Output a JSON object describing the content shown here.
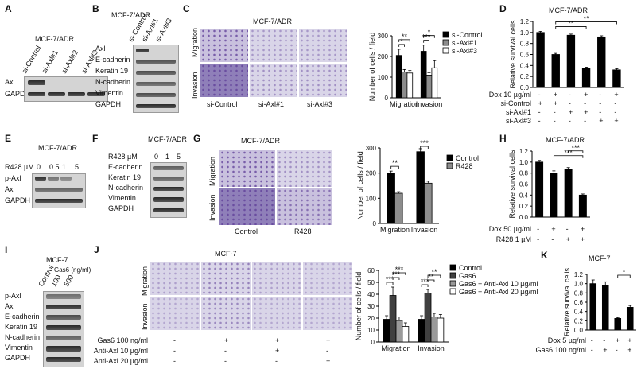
{
  "panels": {
    "A": {
      "letter": "A",
      "title": "MCF-7/ADR",
      "lanes": [
        "si-Control",
        "si-Axl#1",
        "si-Axl#2",
        "si-Axl#3"
      ],
      "rows": [
        "Axl",
        "GAPDH"
      ]
    },
    "B": {
      "letter": "B",
      "title": "MCF-7/ADR",
      "lanes": [
        "si-Control",
        "si-Axl#1",
        "si-Axl#3"
      ],
      "rows": [
        "Axl",
        "E-cadherin",
        "Keratin 19",
        "N-cadherin",
        "Vimentin",
        "GAPDH"
      ]
    },
    "C": {
      "letter": "C",
      "title": "MCF-7/ADR",
      "rows": [
        "Migration",
        "Invasion"
      ],
      "cols": [
        "si-Control",
        "si-Axl#1",
        "si-Axl#3"
      ]
    },
    "D": {
      "letter": "D",
      "title": "MCF-7/ADR",
      "treat_rows": [
        "Dox  10 µg/ml",
        "si-Control",
        "si-Axl#1",
        "si-Axl#3"
      ],
      "treat_signs": [
        [
          "-",
          "+",
          "-",
          "+",
          "-",
          "+"
        ],
        [
          "+",
          "+",
          "-",
          "-",
          "-",
          "-"
        ],
        [
          "-",
          "-",
          "+",
          "+",
          "-",
          "-"
        ],
        [
          "-",
          "-",
          "-",
          "-",
          "+",
          "+"
        ]
      ]
    },
    "E": {
      "letter": "E",
      "title": "MCF-7/ADR",
      "dose_label": "R428 µM",
      "doses": [
        "0",
        "0.5",
        "1",
        "5"
      ],
      "rows": [
        "p-Axl",
        "Axl",
        "GAPDH"
      ]
    },
    "F": {
      "letter": "F",
      "title": "MCF-7/ADR",
      "dose_label": "R428  µM",
      "doses": [
        "0",
        "1",
        "5"
      ],
      "rows": [
        "E-cadherin",
        "Keratin 19",
        "N-cadherin",
        "Vimentin",
        "GAPDH"
      ]
    },
    "G": {
      "letter": "G",
      "title": "MCF-7/ADR",
      "rows": [
        "Migration",
        "Invasion"
      ],
      "cols": [
        "Control",
        "R428"
      ]
    },
    "H": {
      "letter": "H",
      "title": "MCF-7/ADR",
      "treat_rows": [
        "Dox  50 µg/ml",
        "R428 1 µM"
      ],
      "treat_signs": [
        [
          "-",
          "+",
          "-",
          "+"
        ],
        [
          "-",
          "-",
          "+",
          "+"
        ]
      ]
    },
    "I": {
      "letter": "I",
      "title": "MCF-7",
      "dose_label": "Gas6 (ng/ml)",
      "lanes": [
        "Control",
        "100",
        "500"
      ],
      "rows": [
        "p-Axl",
        "Axl",
        "E-cadherin",
        "Keratin 19",
        "N-cadherin",
        "Vimentin",
        "GAPDH"
      ]
    },
    "J": {
      "letter": "J",
      "title": "MCF-7",
      "rows": [
        "Migration",
        "Invasion"
      ],
      "treat_rows": [
        "Gas6 100 ng/ml",
        "Anti-Axl 10 µg/ml",
        "Anti-Axl 20 µg/ml"
      ],
      "treat_signs": [
        [
          "-",
          "+",
          "+",
          "+"
        ],
        [
          "-",
          "-",
          "+",
          "-"
        ],
        [
          "-",
          "-",
          "-",
          "+"
        ]
      ]
    },
    "K": {
      "letter": "K",
      "title": "MCF-7",
      "treat_rows": [
        "Dox  5 µg/ml",
        "Gas6 100 ng/ml"
      ],
      "treat_signs": [
        [
          "-",
          "-",
          "+",
          "+"
        ],
        [
          "-",
          "+",
          "-",
          "+"
        ]
      ]
    }
  },
  "chart_data": [
    {
      "panel": "C",
      "type": "bar",
      "categories": [
        "Migration",
        "Invasion"
      ],
      "ylabel": "Number of cells / field",
      "ylim": [
        0,
        300
      ],
      "yticks": [
        0,
        100,
        200,
        300
      ],
      "series": [
        {
          "name": "si-Control",
          "color": "#000000",
          "values": [
            205,
            225
          ]
        },
        {
          "name": "si-Axl#1",
          "color": "#8c8c8c",
          "values": [
            125,
            110
          ]
        },
        {
          "name": "si-Axl#3",
          "color": "#ffffff",
          "values": [
            120,
            145
          ]
        }
      ],
      "errors": [
        [
          30,
          30
        ],
        [
          12,
          12
        ],
        [
          12,
          35
        ]
      ],
      "sig": [
        {
          "cat": 0,
          "a": 0,
          "b": 1,
          "label": "*"
        },
        {
          "cat": 0,
          "a": 0,
          "b": 2,
          "label": "**"
        },
        {
          "cat": 1,
          "a": 0,
          "b": 1,
          "label": "***"
        },
        {
          "cat": 1,
          "a": 0,
          "b": 2,
          "label": "*"
        }
      ]
    },
    {
      "panel": "D",
      "type": "bar",
      "categories": [
        "1",
        "2",
        "3",
        "4",
        "5",
        "6"
      ],
      "ylabel": "Relative survival cells",
      "ylim": [
        0,
        1.2
      ],
      "yticks": [
        0,
        0.2,
        0.4,
        0.6,
        0.8,
        1.0,
        1.2
      ],
      "series": [
        {
          "name": "",
          "color": "#000000",
          "values": [
            1.0,
            0.6,
            0.95,
            0.35,
            0.92,
            0.32
          ]
        }
      ],
      "errors": [
        [
          0.02,
          0.02,
          0.02,
          0.02,
          0.02,
          0.02
        ]
      ],
      "sig": [
        {
          "a": 1,
          "b": 3,
          "label": "**"
        },
        {
          "a": 1,
          "b": 5,
          "label": "**"
        }
      ]
    },
    {
      "panel": "G",
      "type": "bar",
      "categories": [
        "Migration",
        "Invasion"
      ],
      "ylabel": "Number of cells / field",
      "ylim": [
        0,
        300
      ],
      "yticks": [
        0,
        100,
        200,
        300
      ],
      "series": [
        {
          "name": "Control",
          "color": "#000000",
          "values": [
            200,
            285
          ]
        },
        {
          "name": "R428",
          "color": "#8c8c8c",
          "values": [
            120,
            160
          ]
        }
      ],
      "errors": [
        [
          8,
          12
        ],
        [
          6,
          8
        ]
      ],
      "sig": [
        {
          "cat": 0,
          "a": 0,
          "b": 1,
          "label": "**"
        },
        {
          "cat": 1,
          "a": 0,
          "b": 1,
          "label": "***"
        }
      ]
    },
    {
      "panel": "H",
      "type": "bar",
      "categories": [
        "1",
        "2",
        "3",
        "4"
      ],
      "ylabel": "Relative survival cells",
      "ylim": [
        0,
        1.2
      ],
      "yticks": [
        0,
        0.2,
        0.4,
        0.6,
        0.8,
        1.0,
        1.2
      ],
      "series": [
        {
          "name": "",
          "color": "#000000",
          "values": [
            1.0,
            0.8,
            0.87,
            0.4
          ]
        }
      ],
      "errors": [
        [
          0.03,
          0.04,
          0.03,
          0.02
        ]
      ],
      "sig": [
        {
          "a": 1,
          "b": 3,
          "label": "***"
        },
        {
          "a": 2,
          "b": 3,
          "label": "***"
        }
      ]
    },
    {
      "panel": "J",
      "type": "bar",
      "categories": [
        "Migration",
        "Invasion"
      ],
      "ylabel": "Number of cells / field",
      "ylim": [
        0,
        60
      ],
      "yticks": [
        0,
        10,
        20,
        30,
        40,
        50,
        60
      ],
      "series": [
        {
          "name": "Control",
          "color": "#000000",
          "values": [
            19,
            19
          ]
        },
        {
          "name": "Gas6",
          "color": "#404040",
          "values": [
            39,
            41
          ]
        },
        {
          "name": "Gas6 + Anti-Axl 10 µg/ml",
          "color": "#9a9a9a",
          "values": [
            18,
            21
          ]
        },
        {
          "name": "Gas6 + Anti-Axl 20 µg/ml",
          "color": "#ffffff",
          "values": [
            13,
            20
          ]
        }
      ],
      "errors": [
        [
          3,
          3
        ],
        [
          7,
          3
        ],
        [
          3,
          3
        ],
        [
          3,
          3
        ]
      ],
      "sig": [
        {
          "cat": 0,
          "a": 0,
          "b": 1,
          "label": "***"
        },
        {
          "cat": 0,
          "a": 1,
          "b": 2,
          "label": "***"
        },
        {
          "cat": 0,
          "a": 1,
          "b": 3,
          "label": "***"
        },
        {
          "cat": 1,
          "a": 0,
          "b": 1,
          "label": "***"
        },
        {
          "cat": 1,
          "a": 1,
          "b": 2,
          "label": "**"
        },
        {
          "cat": 1,
          "a": 1,
          "b": 3,
          "label": "**"
        }
      ]
    },
    {
      "panel": "K",
      "type": "bar",
      "categories": [
        "1",
        "2",
        "3",
        "4"
      ],
      "ylabel": "Relative survival cells",
      "ylim": [
        0,
        1.2
      ],
      "yticks": [
        0,
        0.2,
        0.4,
        0.6,
        0.8,
        1.0,
        1.2
      ],
      "series": [
        {
          "name": "",
          "color": "#000000",
          "values": [
            1.0,
            0.97,
            0.25,
            0.49
          ]
        }
      ],
      "errors": [
        [
          0.08,
          0.07,
          0.02,
          0.04
        ]
      ],
      "sig": [
        {
          "a": 2,
          "b": 3,
          "label": "*"
        }
      ]
    }
  ]
}
